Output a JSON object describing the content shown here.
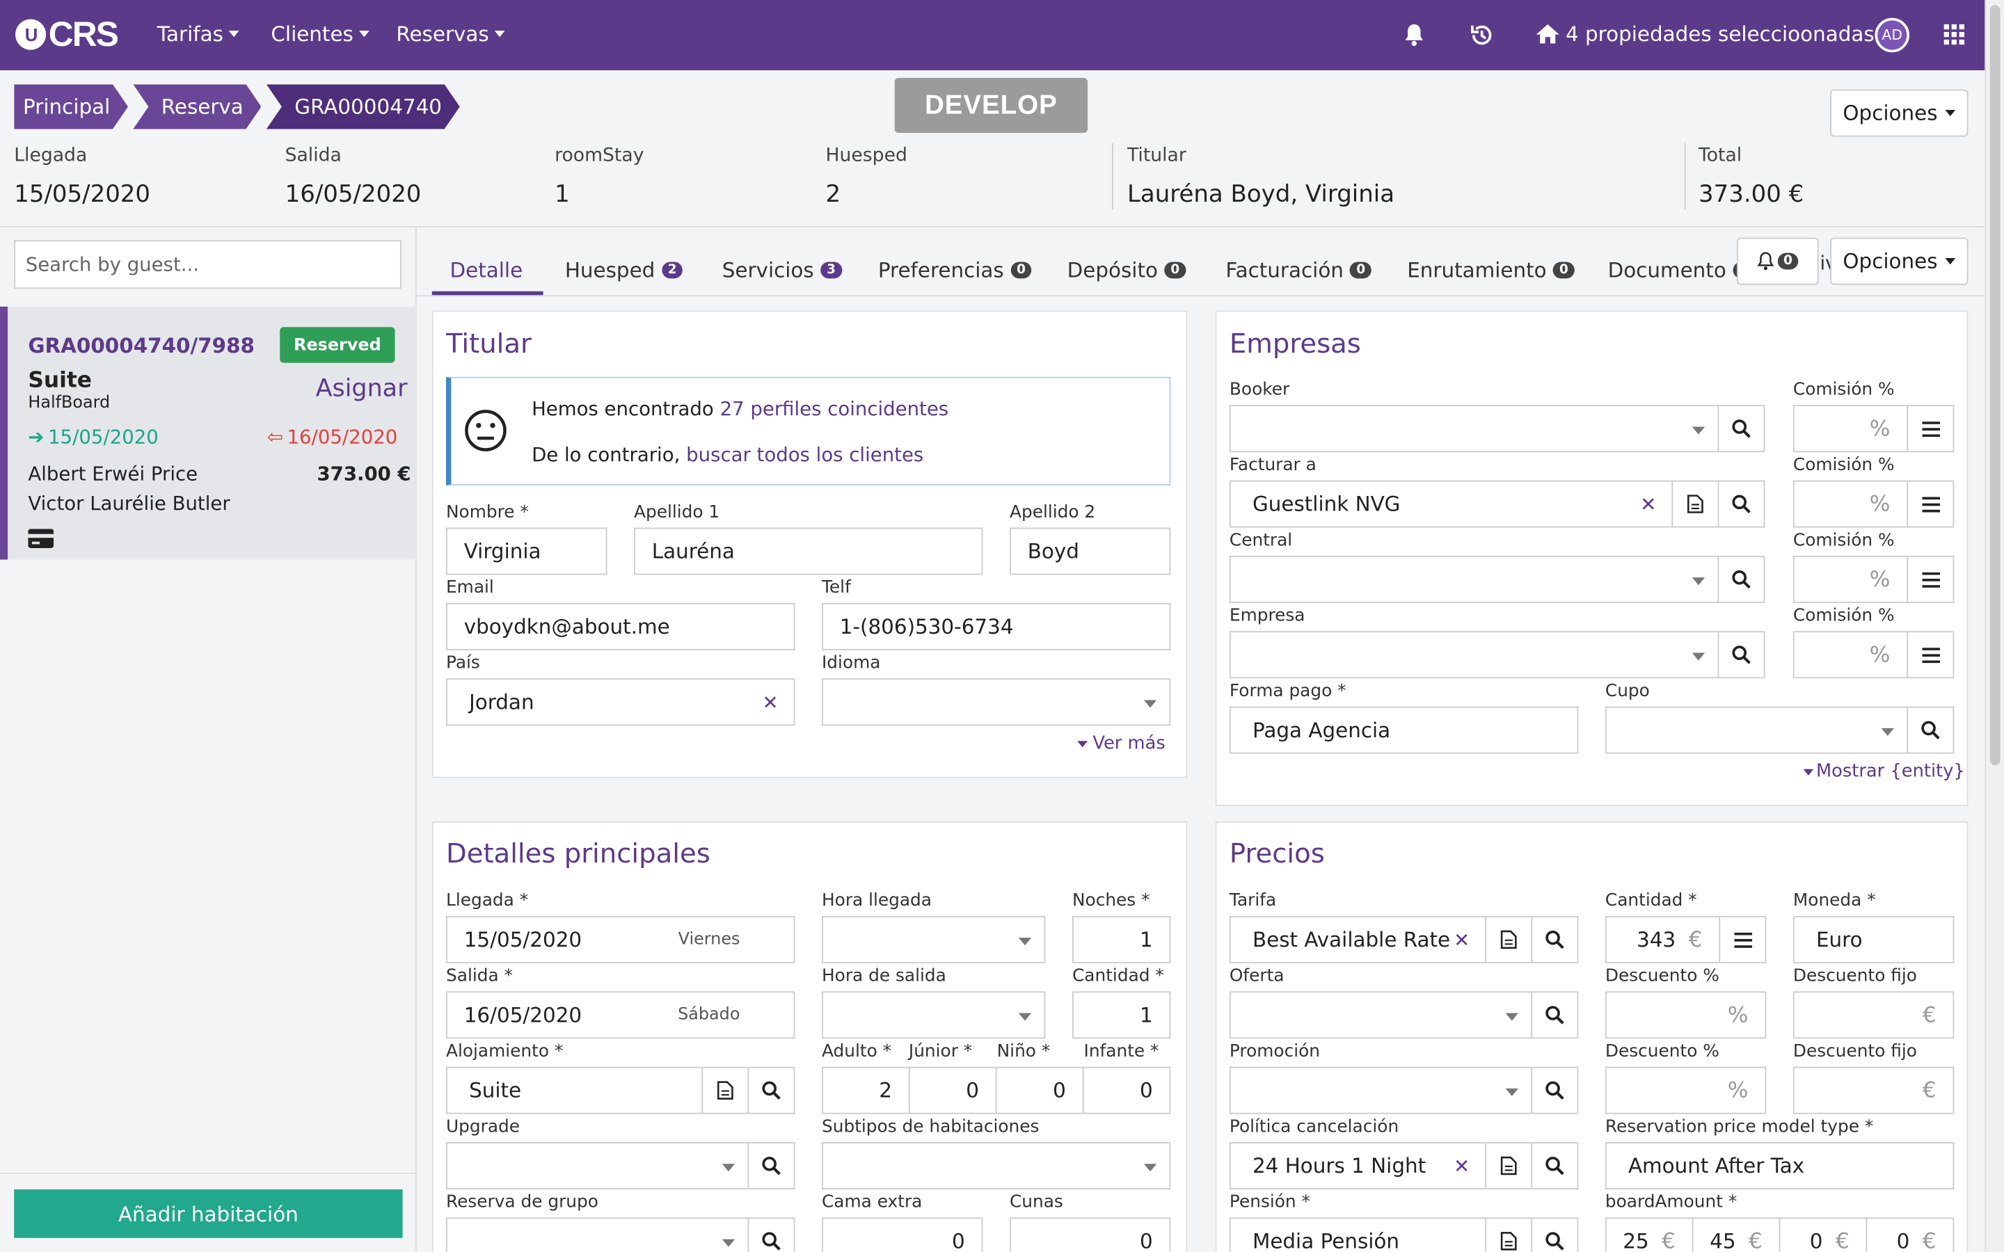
{
  "nav": {
    "logo": "CRS",
    "menu": [
      "Tarifas",
      "Clientes",
      "Reservas"
    ],
    "properties": "4 propiedades seleccioonadas",
    "avatar": "AD"
  },
  "breadcrumb": [
    "Principal",
    "Reserva",
    "GRA00004740"
  ],
  "env_badge": "DEVELOP",
  "options_label": "Opciones",
  "summary": {
    "llegada_label": "Llegada",
    "llegada": "15/05/2020",
    "salida_label": "Salida",
    "salida": "16/05/2020",
    "roomstay_label": "roomStay",
    "roomstay": "1",
    "huesped_label": "Huesped",
    "huesped": "2",
    "titular_label": "Titular",
    "titular": "Lauréna Boyd, Virginia",
    "total_label": "Total",
    "total": "373.00 €"
  },
  "left": {
    "search_placeholder": "Search by guest...",
    "card": {
      "code": "GRA00004740/7988",
      "status": "Reserved",
      "room": "Suite",
      "board": "HalfBoard",
      "assign": "Asignar",
      "arrival": "15/05/2020",
      "departure": "16/05/2020",
      "guest1": "Albert Erwéi Price",
      "amount": "373.00 €",
      "guest2": "Victor Laurélie Butler"
    },
    "add_room": "Añadir habitación"
  },
  "tabs": [
    {
      "label": "Detalle"
    },
    {
      "label": "Huesped",
      "badge": "2"
    },
    {
      "label": "Servicios",
      "badge": "3"
    },
    {
      "label": "Preferencias",
      "badge": "0"
    },
    {
      "label": "Depósito",
      "badge": "0"
    },
    {
      "label": "Facturación",
      "badge": "0"
    },
    {
      "label": "Enrutamiento",
      "badge": "0"
    },
    {
      "label": "Documento",
      "badge": "0"
    }
  ],
  "bell_count": "0",
  "tabs_overflow": "iv",
  "titular": {
    "title": "Titular",
    "found_prefix": "Hemos encontrado",
    "found_link": "27 perfiles coincidentes",
    "else_prefix": "De lo contrario,",
    "else_link": "buscar todos los clientes",
    "nombre_label": "Nombre *",
    "nombre": "Virginia",
    "ap1_label": "Apellido 1",
    "ap1": "Lauréna",
    "ap2_label": "Apellido 2",
    "ap2": "Boyd",
    "email_label": "Email",
    "email": "vboydkn@about.me",
    "telf_label": "Telf",
    "telf": "1-(806)530-6734",
    "pais_label": "País",
    "pais": "Jordan",
    "idioma_label": "Idioma",
    "idioma": "",
    "ver_mas": "Ver más"
  },
  "empresas": {
    "title": "Empresas",
    "booker_label": "Booker",
    "facturar_label": "Facturar a",
    "facturar": "Guestlink NVG",
    "central_label": "Central",
    "empresa_label": "Empresa",
    "comision_label": "Comisión %",
    "pct": "%",
    "forma_label": "Forma pago *",
    "forma": "Paga Agencia",
    "cupo_label": "Cupo",
    "mostrar": "Mostrar {entity}"
  },
  "detalles": {
    "title": "Detalles principales",
    "llegada_label": "Llegada *",
    "llegada": "15/05/2020",
    "llegada_day": "Viernes",
    "hora_llegada_label": "Hora llegada",
    "noches_label": "Noches *",
    "noches": "1",
    "salida_label": "Salida *",
    "salida": "16/05/2020",
    "salida_day": "Sábado",
    "hora_salida_label": "Hora de salida",
    "cantidad_label": "Cantidad *",
    "cantidad": "1",
    "aloj_label": "Alojamiento *",
    "aloj": "Suite",
    "adulto_label": "Adulto *",
    "adulto": "2",
    "junior_label": "Júnior *",
    "junior": "0",
    "nino_label": "Niño *",
    "nino": "0",
    "infante_label": "Infante *",
    "infante": "0",
    "upgrade_label": "Upgrade",
    "subtipos_label": "Subtipos de habitaciones",
    "grupo_label": "Reserva de grupo",
    "cama_label": "Cama extra",
    "cama": "0",
    "cunas_label": "Cunas",
    "cunas": "0"
  },
  "precios": {
    "title": "Precios",
    "tarifa_label": "Tarifa",
    "tarifa": "Best Available Rate",
    "cantidad_label": "Cantidad *",
    "cantidad": "343",
    "currency": "€",
    "moneda_label": "Moneda *",
    "moneda": "Euro",
    "oferta_label": "Oferta",
    "desc_label": "Descuento %",
    "descfijo_label": "Descuento fijo",
    "promo_label": "Promoción",
    "politica_label": "Política cancelación",
    "politica": "24 Hours 1 Night",
    "rpm_label": "Reservation price model type *",
    "rpm": "Amount After Tax",
    "pension_label": "Pensión *",
    "pension": "Media Pensión",
    "board_label": "boardAmount *",
    "board": [
      "25",
      "45",
      "0",
      "0"
    ]
  }
}
